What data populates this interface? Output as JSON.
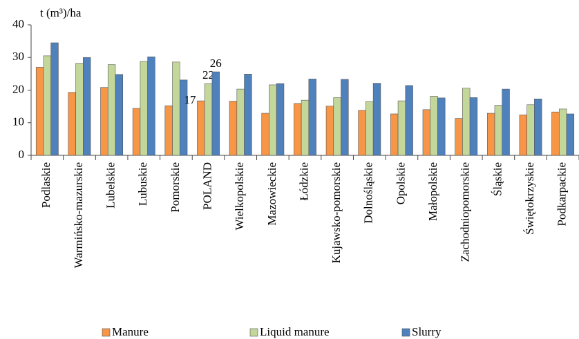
{
  "chart_data": {
    "type": "bar",
    "y_label": "t (m³)/ha",
    "categories": [
      "Podlaskie",
      "Warmińsko-mazurskie",
      "Lubelskie",
      "Lubuskie",
      "Pomorskie",
      "POLAND",
      "Wielkopolskie",
      "Mazowieckie",
      "Łódzkie",
      "Kujawsko-pomorskie",
      "Dolnośląskie",
      "Opolskie",
      "Małopolskie",
      "Zachodniopomorskie",
      "Śląskie",
      "Świętokrzyskie",
      "Podkarpackie"
    ],
    "series": [
      {
        "name": "Manure",
        "color": "#f79646",
        "values": [
          27.0,
          19.3,
          20.8,
          14.4,
          15.2,
          16.7,
          16.6,
          12.9,
          15.9,
          15.1,
          13.8,
          12.7,
          14.0,
          11.3,
          12.9,
          12.4,
          13.3
        ],
        "value_labels": [
          null,
          null,
          null,
          null,
          null,
          "17",
          null,
          null,
          null,
          null,
          null,
          null,
          null,
          null,
          null,
          null,
          null
        ]
      },
      {
        "name": "Liquid manure",
        "color": "#c4d79b",
        "values": [
          30.5,
          28.2,
          27.8,
          28.8,
          28.6,
          22.0,
          20.3,
          21.6,
          16.9,
          17.7,
          16.5,
          16.7,
          18.1,
          20.6,
          15.3,
          15.5,
          14.2
        ],
        "value_labels": [
          null,
          null,
          null,
          null,
          null,
          "22",
          null,
          null,
          null,
          null,
          null,
          null,
          null,
          null,
          null,
          null,
          null
        ]
      },
      {
        "name": "Slurry",
        "color": "#4f81bd",
        "values": [
          34.5,
          30.0,
          24.8,
          30.2,
          23.1,
          25.6,
          24.9,
          22.0,
          23.4,
          23.3,
          22.1,
          21.4,
          17.6,
          17.7,
          20.3,
          17.3,
          12.7
        ],
        "value_labels": [
          null,
          null,
          null,
          null,
          null,
          "26",
          null,
          null,
          null,
          null,
          null,
          null,
          null,
          null,
          null,
          null,
          null
        ]
      }
    ],
    "ylim": [
      0,
      40
    ],
    "yticks": [
      0,
      10,
      20,
      30,
      40
    ],
    "grid": false,
    "legend": "bottom"
  }
}
